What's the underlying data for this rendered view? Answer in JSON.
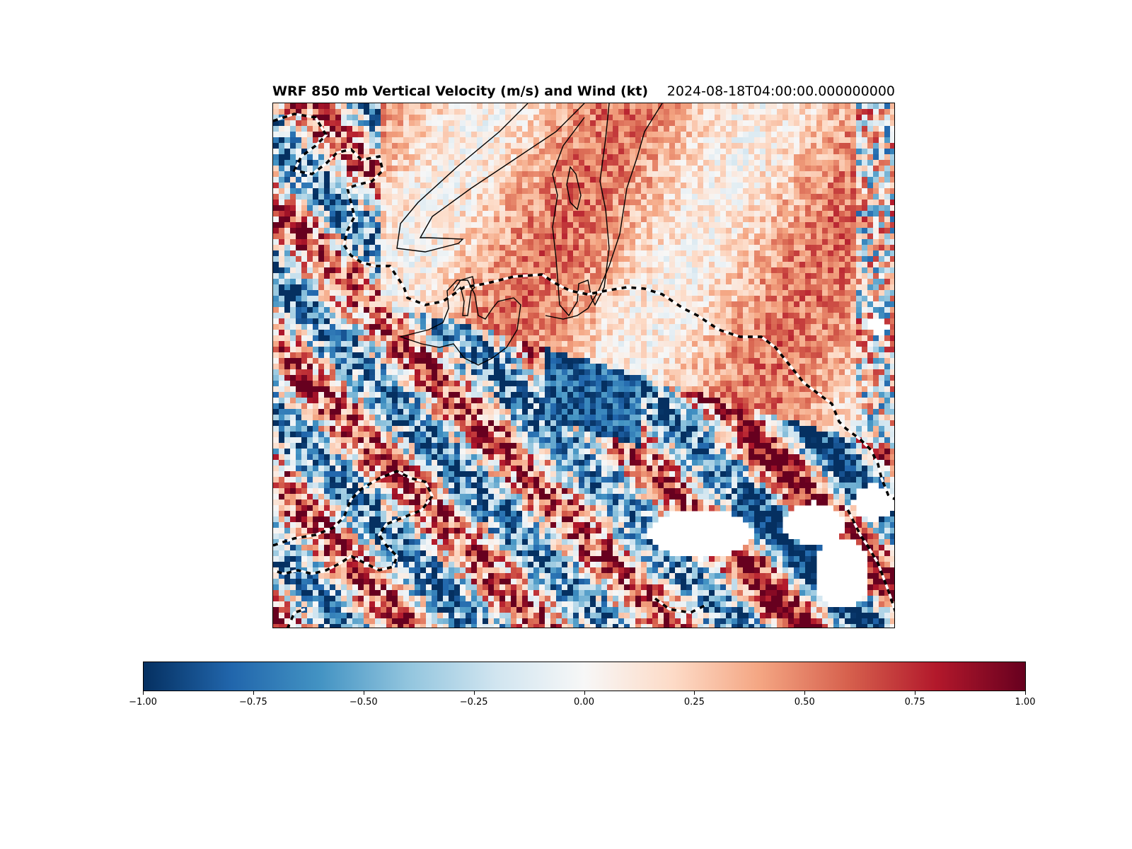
{
  "chart_data": {
    "type": "heatmap",
    "title": "WRF 850 mb Vertical Velocity (m/s) and Wind (kt)",
    "subtitle": "2024-08-18T04:00:00.000000000",
    "colormap": "RdBu_r",
    "vmin": -1.0,
    "vmax": 1.0,
    "colorbar": {
      "orientation": "horizontal",
      "ticks": [
        -1.0,
        -0.75,
        -0.5,
        -0.25,
        0.0,
        0.25,
        0.5,
        0.75,
        1.0
      ],
      "tick_labels": [
        "−1.00",
        "−0.75",
        "−0.50",
        "−0.25",
        "0.00",
        "0.25",
        "0.50",
        "0.75",
        "1.00"
      ],
      "colors": [
        "#053061",
        "#2166ac",
        "#4393c3",
        "#92c5de",
        "#d1e5f0",
        "#f7f7f7",
        "#fddbc7",
        "#f4a582",
        "#d6604d",
        "#b2182b",
        "#67001f"
      ]
    },
    "grid": false,
    "features": [
      "black contour lines",
      "black-and-white dashed boundary lines",
      "masked (blank) areas"
    ]
  }
}
